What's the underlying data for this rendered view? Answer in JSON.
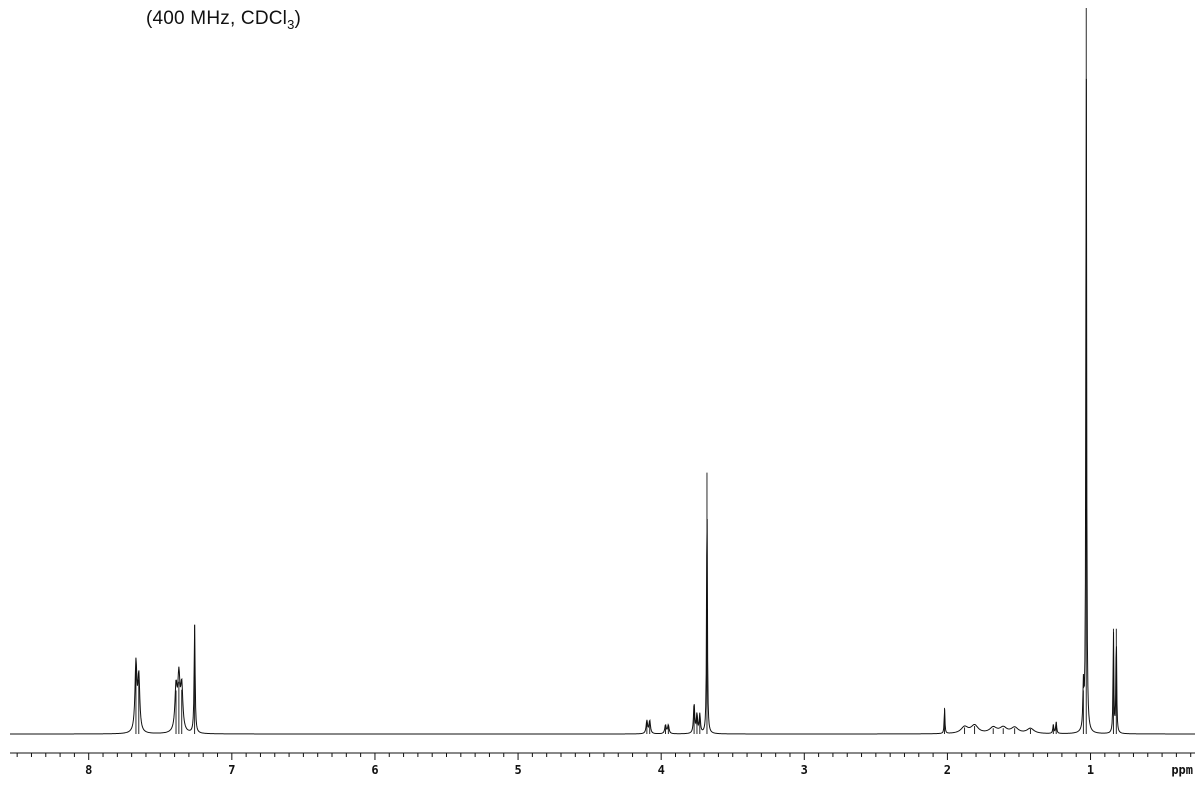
{
  "caption": {
    "prefix": "(400 MHz, CDCl",
    "subscript": "3",
    "suffix": ")"
  },
  "chart_data": {
    "type": "line",
    "title": "(400 MHz, CDCl3)",
    "xlabel": "ppm",
    "ylabel": "",
    "x_reversed": true,
    "xlim": [
      8.55,
      0.27
    ],
    "ylim": [
      0,
      100
    ],
    "x_ticks": [
      8,
      7,
      6,
      5,
      4,
      3,
      2,
      1
    ],
    "tick_labels": [
      "8",
      "7",
      "6",
      "5",
      "4",
      "3",
      "2",
      "1"
    ],
    "grid": false,
    "baseline": 0,
    "series": [
      {
        "peaks": [
          {
            "ppm": 7.67,
            "height": 9.5,
            "width": 0.008
          },
          {
            "ppm": 7.65,
            "height": 7.5,
            "width": 0.008
          },
          {
            "ppm": 7.39,
            "height": 6.0,
            "width": 0.009
          },
          {
            "ppm": 7.37,
            "height": 7.2,
            "width": 0.009
          },
          {
            "ppm": 7.35,
            "height": 6.1,
            "width": 0.009
          },
          {
            "ppm": 7.26,
            "height": 15.0,
            "width": 0.004
          },
          {
            "ppm": 4.1,
            "height": 1.8,
            "width": 0.006
          },
          {
            "ppm": 4.08,
            "height": 1.8,
            "width": 0.006
          },
          {
            "ppm": 3.97,
            "height": 1.2,
            "width": 0.006
          },
          {
            "ppm": 3.95,
            "height": 1.2,
            "width": 0.006
          },
          {
            "ppm": 3.77,
            "height": 4.1,
            "width": 0.005
          },
          {
            "ppm": 3.75,
            "height": 2.6,
            "width": 0.005
          },
          {
            "ppm": 3.73,
            "height": 2.6,
            "width": 0.005
          },
          {
            "ppm": 3.68,
            "height": 36.0,
            "width": 0.003
          },
          {
            "ppm": 2.02,
            "height": 3.6,
            "width": 0.003
          },
          {
            "ppm": 1.88,
            "height": 0.9,
            "width": 0.03
          },
          {
            "ppm": 1.81,
            "height": 1.1,
            "width": 0.03
          },
          {
            "ppm": 1.68,
            "height": 0.8,
            "width": 0.03
          },
          {
            "ppm": 1.61,
            "height": 0.8,
            "width": 0.03
          },
          {
            "ppm": 1.53,
            "height": 0.8,
            "width": 0.03
          },
          {
            "ppm": 1.42,
            "height": 0.7,
            "width": 0.03
          },
          {
            "ppm": 1.26,
            "height": 1.2,
            "width": 0.004
          },
          {
            "ppm": 1.24,
            "height": 1.6,
            "width": 0.004
          },
          {
            "ppm": 1.05,
            "height": 6.0,
            "width": 0.004
          },
          {
            "ppm": 1.03,
            "height": 100.0,
            "width": 0.003
          },
          {
            "ppm": 0.84,
            "height": 14.5,
            "width": 0.003
          },
          {
            "ppm": 0.82,
            "height": 14.5,
            "width": 0.003
          }
        ]
      }
    ]
  }
}
